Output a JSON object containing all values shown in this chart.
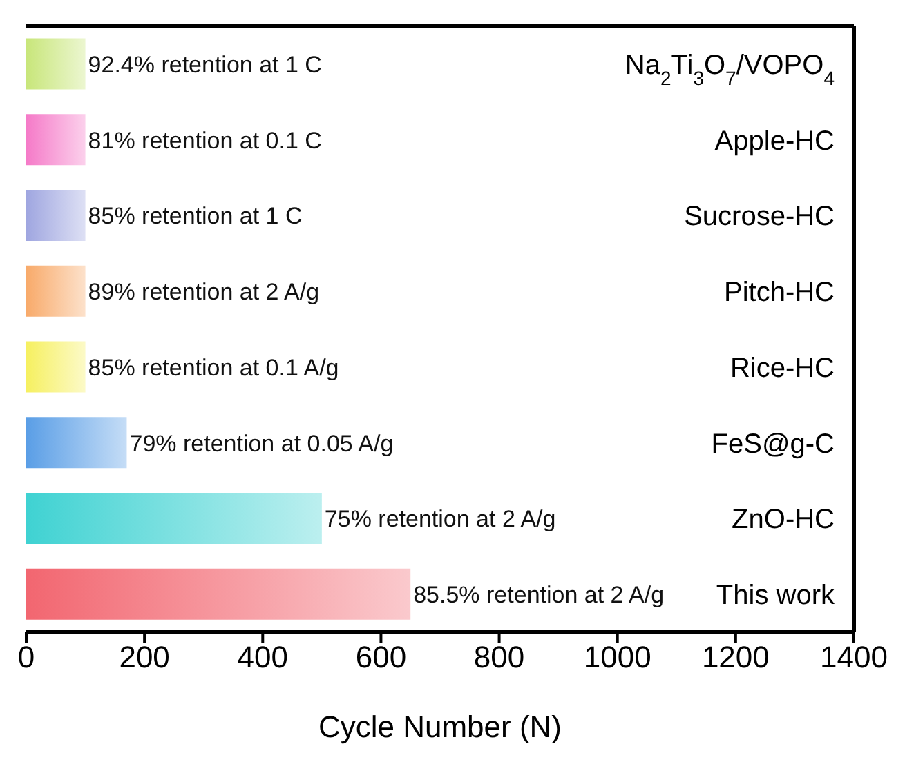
{
  "chart_data": {
    "type": "bar",
    "orientation": "horizontal",
    "xlabel": "Cycle Number (N)",
    "categories": [
      "Na$_{2}$Ti$_{3}$O$_{7}$/VOPO$_{4}$",
      "Apple-HC",
      "Sucrose-HC",
      "Pitch-HC",
      "Rice-HC",
      "FeS@g-C",
      "ZnO-HC",
      "This work"
    ],
    "values": [
      100,
      100,
      100,
      100,
      100,
      170,
      500,
      650
    ],
    "colors": [
      "#c8e67a",
      "#f57ac8",
      "#9fa6e0",
      "#f8aa6a",
      "#f6f060",
      "#5a9ee6",
      "#3fd2d2",
      "#f26670"
    ],
    "xlim": [
      0,
      1400
    ],
    "xticks": [
      0,
      200,
      400,
      600,
      800,
      1000,
      1200,
      1400
    ],
    "annotations": [
      {
        "text": "92.4% retention at 1 C",
        "x": 100,
        "y": "Na$_{2}$Ti$_{3}$O$_{7}$/VOPO$_{4}$"
      },
      {
        "text": "81% retention at 0.1 C",
        "x": 100,
        "y": "Apple-HC"
      },
      {
        "text": "85% retention at 1 C",
        "x": 100,
        "y": "Sucrose-HC"
      },
      {
        "text": "89% retention at 2 A/g",
        "x": 100,
        "y": "Pitch-HC"
      },
      {
        "text": "85% retention at 0.1 A/g",
        "x": 100,
        "y": "Rice-HC"
      },
      {
        "text": "79% retention at 0.05 A/g",
        "x": 170,
        "y": "FeS@g-C"
      },
      {
        "text": "75% retention at 2 A/g",
        "x": 500,
        "y": "ZnO-HC"
      },
      {
        "text": "85.5% retention at 2 A/g",
        "x": 650,
        "y": "This work"
      }
    ]
  }
}
